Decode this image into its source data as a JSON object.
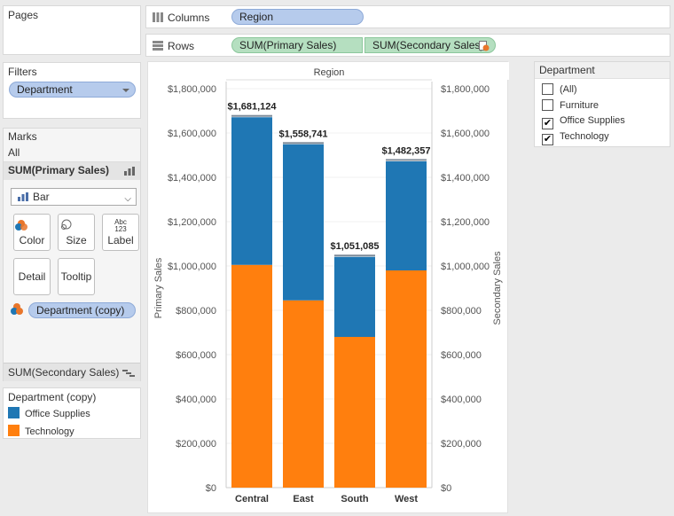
{
  "pages": {
    "title": "Pages"
  },
  "filters": {
    "title": "Filters",
    "pill_label": "Department"
  },
  "marks": {
    "title": "Marks",
    "all_label": "All",
    "primary_label": "SUM(Primary Sales)",
    "mark_type": "Bar",
    "buttons": {
      "color": "Color",
      "size": "Size",
      "label": "Label",
      "label_icon_top": "Abc",
      "label_icon_bottom": "123",
      "detail": "Detail",
      "tooltip": "Tooltip"
    },
    "color_pill": "Department (copy)",
    "secondary_label": "SUM(Secondary Sales)"
  },
  "legend": {
    "title": "Department (copy)",
    "items": [
      {
        "label": "Office Supplies",
        "color": "#1f77b4"
      },
      {
        "label": "Technology",
        "color": "#ff7f0e"
      }
    ]
  },
  "columns_shelf": {
    "label": "Columns",
    "pill": "Region"
  },
  "rows_shelf": {
    "label": "Rows",
    "pills": [
      "SUM(Primary Sales)",
      "SUM(Secondary Sales)"
    ]
  },
  "department_filter": {
    "title": "Department",
    "options": [
      {
        "label": "(All)",
        "checked": false
      },
      {
        "label": "Furniture",
        "checked": false
      },
      {
        "label": "Office Supplies",
        "checked": true
      },
      {
        "label": "Technology",
        "checked": true
      }
    ]
  },
  "chart_data": {
    "type": "bar",
    "stacked": true,
    "title": "Region",
    "categories": [
      "Central",
      "East",
      "South",
      "West"
    ],
    "series": [
      {
        "name": "Technology",
        "color": "#ff7f0e",
        "values": [
          1005000,
          845000,
          680000,
          980000
        ]
      },
      {
        "name": "Office Supplies",
        "color": "#1f77b4",
        "values": [
          666000,
          704000,
          361000,
          492000
        ]
      }
    ],
    "overlay_color": "#7f8c99",
    "totals": [
      1681124,
      1558741,
      1051085,
      1482357
    ],
    "total_labels": [
      "$1,681,124",
      "$1,558,741",
      "$1,051,085",
      "$1,482,357"
    ],
    "ylabel": "Primary Sales",
    "ylabel_right": "Secondary Sales",
    "ylim": [
      0,
      1800000
    ],
    "ticks": [
      0,
      200000,
      400000,
      600000,
      800000,
      1000000,
      1200000,
      1400000,
      1600000,
      1800000
    ],
    "tick_labels": [
      "$0",
      "$200,000",
      "$400,000",
      "$600,000",
      "$800,000",
      "$1,000,000",
      "$1,200,000",
      "$1,400,000",
      "$1,600,000",
      "$1,800,000"
    ],
    "legend": "none"
  }
}
